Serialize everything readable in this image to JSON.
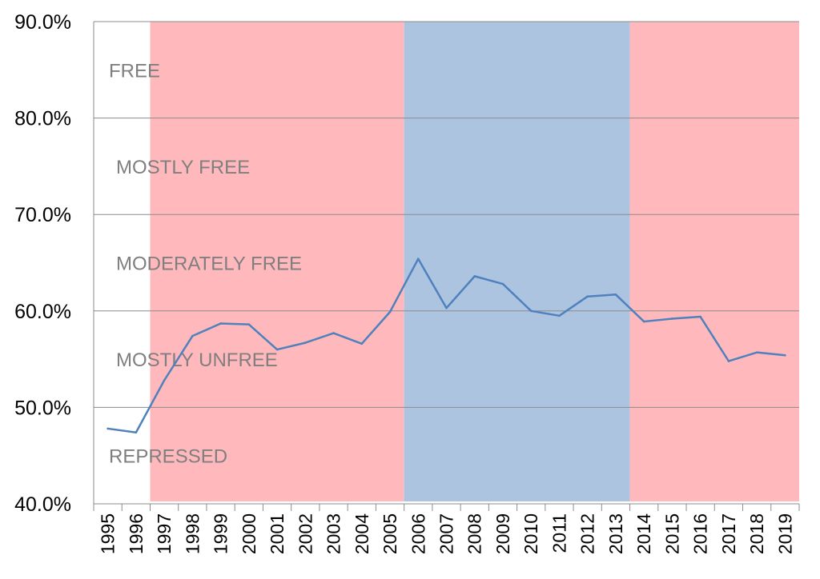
{
  "chart_data": {
    "type": "line",
    "title": "",
    "xlabel": "",
    "ylabel": "",
    "x": [
      "1995",
      "1996",
      "1997",
      "1998",
      "1999",
      "2000",
      "2001",
      "2002",
      "2003",
      "2004",
      "2005",
      "2006",
      "2007",
      "2008",
      "2009",
      "2010",
      "2011",
      "2012",
      "2013",
      "2014",
      "2015",
      "2016",
      "2017",
      "2018",
      "2019"
    ],
    "series": [
      {
        "values": [
          47.8,
          47.4,
          52.8,
          57.4,
          58.7,
          58.6,
          56.0,
          56.7,
          57.7,
          56.6,
          59.9,
          65.4,
          60.3,
          63.6,
          62.8,
          60.0,
          59.5,
          61.5,
          61.7,
          58.9,
          59.2,
          59.4,
          54.8,
          55.7,
          55.4
        ],
        "color": "#4f81bd"
      }
    ],
    "ylim": [
      40,
      90
    ],
    "yticks": [
      "40.0%",
      "50.0%",
      "60.0%",
      "70.0%",
      "80.0%",
      "90.0%"
    ],
    "grid": true,
    "periods": [
      {
        "start": "1997",
        "end": "2005",
        "color": "#ffb9bd"
      },
      {
        "start": "2006",
        "end": "2013",
        "color": "#adc4e1"
      },
      {
        "start": "2014",
        "end": "2019",
        "color": "#ffb9bd"
      }
    ],
    "band_labels": [
      {
        "text": "FREE",
        "y": 85
      },
      {
        "text": "MOSTLY FREE",
        "y": 75
      },
      {
        "text": "MODERATELY FREE",
        "y": 65
      },
      {
        "text": "MOSTLY UNFREE",
        "y": 55
      },
      {
        "text": "REPRESSED",
        "y": 45
      }
    ]
  }
}
